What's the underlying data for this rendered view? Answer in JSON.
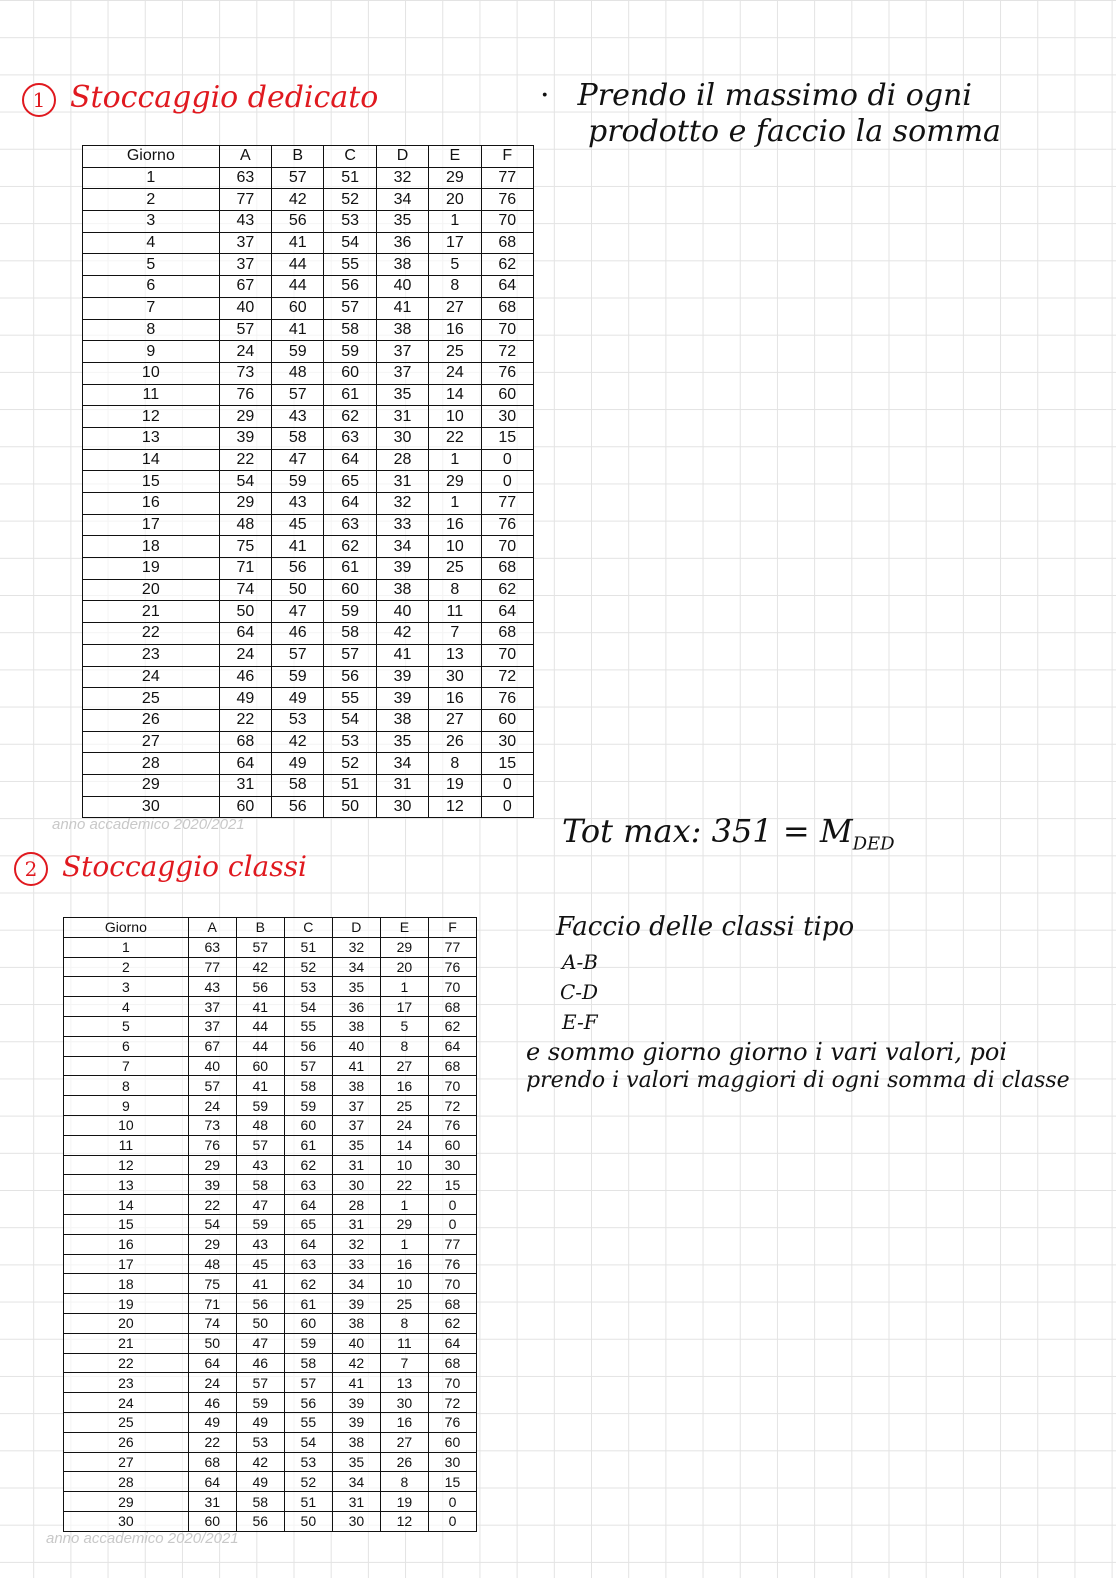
{
  "section1": {
    "number": "1",
    "title": "Stoccaggio dedicato"
  },
  "note1": {
    "line1": "Prendo il massimo di ogni",
    "line2": "prodotto e faccio la somma"
  },
  "total": {
    "label": "Tot max:",
    "value": "351",
    "equals": "= M",
    "subscript": "DED"
  },
  "section2": {
    "number": "2",
    "title": "Stoccaggio classi"
  },
  "note2": {
    "line1": "Faccio delle classi tipo",
    "classes": [
      "A-B",
      "C-D",
      "E-F"
    ],
    "line2": "e sommo giorno giorno i vari valori, poi",
    "line3": "prendo i valori maggiori di ogni somma di classe"
  },
  "watermark": "anno accademico 2020/2021",
  "colors": {
    "heading": "#e0191f",
    "ink": "#111111"
  },
  "table": {
    "headers": [
      "Giorno",
      "A",
      "B",
      "C",
      "D",
      "E",
      "F"
    ],
    "rows": [
      [
        "1",
        "63",
        "57",
        "51",
        "32",
        "29",
        "77"
      ],
      [
        "2",
        "77",
        "42",
        "52",
        "34",
        "20",
        "76"
      ],
      [
        "3",
        "43",
        "56",
        "53",
        "35",
        "1",
        "70"
      ],
      [
        "4",
        "37",
        "41",
        "54",
        "36",
        "17",
        "68"
      ],
      [
        "5",
        "37",
        "44",
        "55",
        "38",
        "5",
        "62"
      ],
      [
        "6",
        "67",
        "44",
        "56",
        "40",
        "8",
        "64"
      ],
      [
        "7",
        "40",
        "60",
        "57",
        "41",
        "27",
        "68"
      ],
      [
        "8",
        "57",
        "41",
        "58",
        "38",
        "16",
        "70"
      ],
      [
        "9",
        "24",
        "59",
        "59",
        "37",
        "25",
        "72"
      ],
      [
        "10",
        "73",
        "48",
        "60",
        "37",
        "24",
        "76"
      ],
      [
        "11",
        "76",
        "57",
        "61",
        "35",
        "14",
        "60"
      ],
      [
        "12",
        "29",
        "43",
        "62",
        "31",
        "10",
        "30"
      ],
      [
        "13",
        "39",
        "58",
        "63",
        "30",
        "22",
        "15"
      ],
      [
        "14",
        "22",
        "47",
        "64",
        "28",
        "1",
        "0"
      ],
      [
        "15",
        "54",
        "59",
        "65",
        "31",
        "29",
        "0"
      ],
      [
        "16",
        "29",
        "43",
        "64",
        "32",
        "1",
        "77"
      ],
      [
        "17",
        "48",
        "45",
        "63",
        "33",
        "16",
        "76"
      ],
      [
        "18",
        "75",
        "41",
        "62",
        "34",
        "10",
        "70"
      ],
      [
        "19",
        "71",
        "56",
        "61",
        "39",
        "25",
        "68"
      ],
      [
        "20",
        "74",
        "50",
        "60",
        "38",
        "8",
        "62"
      ],
      [
        "21",
        "50",
        "47",
        "59",
        "40",
        "11",
        "64"
      ],
      [
        "22",
        "64",
        "46",
        "58",
        "42",
        "7",
        "68"
      ],
      [
        "23",
        "24",
        "57",
        "57",
        "41",
        "13",
        "70"
      ],
      [
        "24",
        "46",
        "59",
        "56",
        "39",
        "30",
        "72"
      ],
      [
        "25",
        "49",
        "49",
        "55",
        "39",
        "16",
        "76"
      ],
      [
        "26",
        "22",
        "53",
        "54",
        "38",
        "27",
        "60"
      ],
      [
        "27",
        "68",
        "42",
        "53",
        "35",
        "26",
        "30"
      ],
      [
        "28",
        "64",
        "49",
        "52",
        "34",
        "8",
        "15"
      ],
      [
        "29",
        "31",
        "58",
        "51",
        "31",
        "19",
        "0"
      ],
      [
        "30",
        "60",
        "56",
        "50",
        "30",
        "12",
        "0"
      ]
    ]
  }
}
